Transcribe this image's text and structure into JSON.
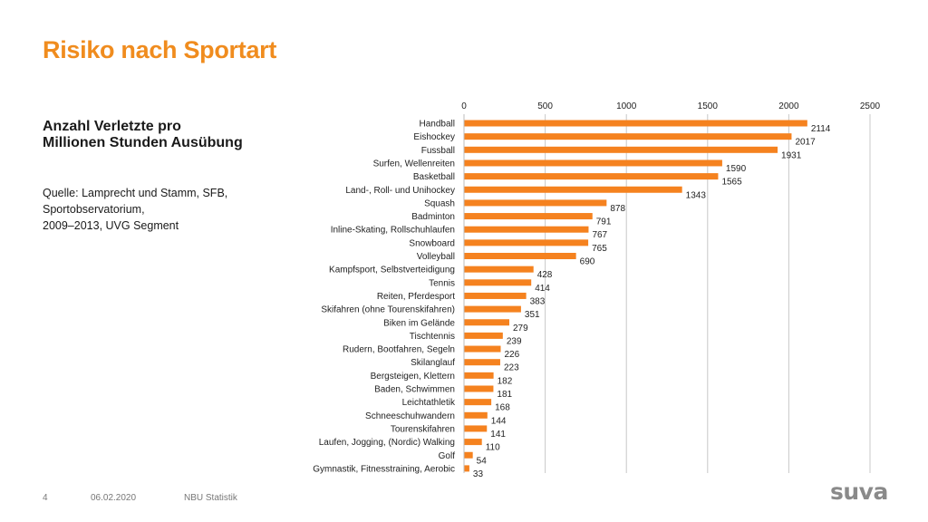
{
  "header": {
    "title": "Risiko nach Sportart"
  },
  "sidebar": {
    "subtitle_lines": [
      "Anzahl Verletzte pro",
      "Millionen Stunden Ausübung"
    ],
    "source_lines": [
      "Quelle: Lamprecht und Stamm, SFB,",
      "Sportobservatorium,",
      "2009–2013, UVG Segment"
    ]
  },
  "footer": {
    "page": "4",
    "date": "06.02.2020",
    "label": "NBU Statistik",
    "logo": "suva"
  },
  "colors": {
    "accent": "#f08c1e",
    "bar": "#f5821f",
    "grid": "#c8c8c8"
  },
  "chart_data": {
    "type": "bar",
    "orientation": "horizontal",
    "categories": [
      "Handball",
      "Eishockey",
      "Fussball",
      "Surfen, Wellenreiten",
      "Basketball",
      "Land-, Roll- und Unihockey",
      "Squash",
      "Badminton",
      "Inline-Skating, Rollschuhlaufen",
      "Snowboard",
      "Volleyball",
      "Kampfsport, Selbstverteidigung",
      "Tennis",
      "Reiten, Pferdesport",
      "Skifahren (ohne Tourenskifahren)",
      "Biken im Gelände",
      "Tischtennis",
      "Rudern, Bootfahren, Segeln",
      "Skilanglauf",
      "Bergsteigen, Klettern",
      "Baden, Schwimmen",
      "Leichtathletik",
      "Schneeschuhwandern",
      "Tourenskifahren",
      "Laufen, Jogging, (Nordic) Walking",
      "Golf",
      "Gymnastik, Fitnesstraining, Aerobic"
    ],
    "values": [
      2114,
      2017,
      1931,
      1590,
      1565,
      1343,
      878,
      791,
      767,
      765,
      690,
      428,
      414,
      383,
      351,
      279,
      239,
      226,
      223,
      182,
      181,
      168,
      144,
      141,
      110,
      54,
      33
    ],
    "xlim": [
      0,
      2500
    ],
    "xticks": [
      0,
      500,
      1000,
      1500,
      2000,
      2500
    ],
    "axis_position": "top",
    "grid": true,
    "data_labels": true
  }
}
